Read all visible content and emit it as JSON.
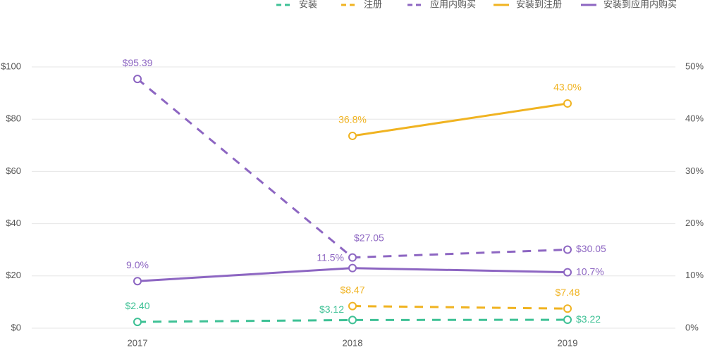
{
  "chart_data": {
    "type": "line",
    "categories": [
      "2017",
      "2018",
      "2019"
    ],
    "series": [
      {
        "name": "安装",
        "color": "#3ec195",
        "dashed": true,
        "axis": "y",
        "values": [
          2.4,
          3.12,
          3.22
        ],
        "value_labels": [
          "$2.40",
          "$3.12",
          "$3.22"
        ]
      },
      {
        "name": "注册",
        "color": "#f0b321",
        "dashed": true,
        "axis": "y",
        "values": [
          null,
          8.47,
          7.48
        ],
        "value_labels": [
          null,
          "$8.47",
          "$7.48"
        ]
      },
      {
        "name": "应用内购买",
        "color": "#8d66c2",
        "dashed": true,
        "axis": "y",
        "values": [
          95.39,
          27.05,
          30.05
        ],
        "value_labels": [
          "$95.39",
          "$27.05",
          "$30.05"
        ]
      },
      {
        "name": "安装到注册",
        "color": "#f0b321",
        "dashed": false,
        "axis": "y2",
        "values": [
          null,
          36.8,
          43.0
        ],
        "value_labels": [
          null,
          "36.8%",
          "43.0%"
        ]
      },
      {
        "name": "安装到应用内购买",
        "color": "#8d66c2",
        "dashed": false,
        "axis": "y2",
        "values": [
          9.0,
          11.5,
          10.7
        ],
        "value_labels": [
          "9.0%",
          "11.5%",
          "10.7%"
        ]
      }
    ],
    "ylim": [
      0,
      100
    ],
    "yticks": [
      {
        "value": 0,
        "label": "$0"
      },
      {
        "value": 20,
        "label": "$20"
      },
      {
        "value": 40,
        "label": "$40"
      },
      {
        "value": 60,
        "label": "$60"
      },
      {
        "value": 80,
        "label": "$80"
      },
      {
        "value": 100,
        "label": "$100"
      }
    ],
    "y2lim": [
      0,
      50
    ],
    "y2ticks": [
      {
        "value": 0,
        "label": "0%"
      },
      {
        "value": 10,
        "label": "10%"
      },
      {
        "value": 20,
        "label": "20%"
      },
      {
        "value": 30,
        "label": "30%"
      },
      {
        "value": 40,
        "label": "40%"
      },
      {
        "value": 50,
        "label": "50%"
      }
    ],
    "grid": true
  }
}
